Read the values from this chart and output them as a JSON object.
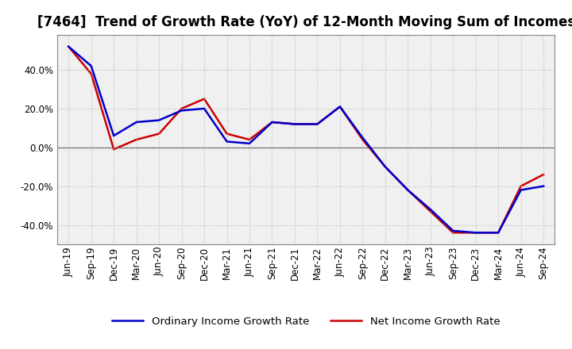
{
  "title": "[7464]  Trend of Growth Rate (YoY) of 12-Month Moving Sum of Incomes",
  "x_labels": [
    "Jun-19",
    "Sep-19",
    "Dec-19",
    "Mar-20",
    "Jun-20",
    "Sep-20",
    "Dec-20",
    "Mar-21",
    "Jun-21",
    "Sep-21",
    "Dec-21",
    "Mar-22",
    "Jun-22",
    "Sep-22",
    "Dec-22",
    "Mar-23",
    "Jun-23",
    "Sep-23",
    "Dec-23",
    "Mar-24",
    "Jun-24",
    "Sep-24"
  ],
  "ordinary_income": [
    52,
    42,
    6,
    13,
    14,
    19,
    20,
    3,
    2,
    13,
    12,
    12,
    21,
    5,
    -10,
    -22,
    -32,
    -43,
    -44,
    -44,
    -22,
    -20
  ],
  "net_income": [
    52,
    38,
    -1,
    4,
    7,
    20,
    25,
    7,
    4,
    13,
    12,
    12,
    21,
    4,
    -10,
    -22,
    -33,
    -44,
    -44,
    -44,
    -20,
    -14
  ],
  "ordinary_color": "#0000cc",
  "net_color": "#cc0000",
  "ylim": [
    -50,
    58
  ],
  "yticks": [
    -40,
    -20,
    0,
    20,
    40
  ],
  "background_color": "#ffffff",
  "plot_bg_color": "#f0f0f0",
  "grid_color": "#bbbbbb",
  "legend_ordinary": "Ordinary Income Growth Rate",
  "legend_net": "Net Income Growth Rate",
  "title_fontsize": 12,
  "axis_fontsize": 8.5,
  "legend_fontsize": 9.5
}
